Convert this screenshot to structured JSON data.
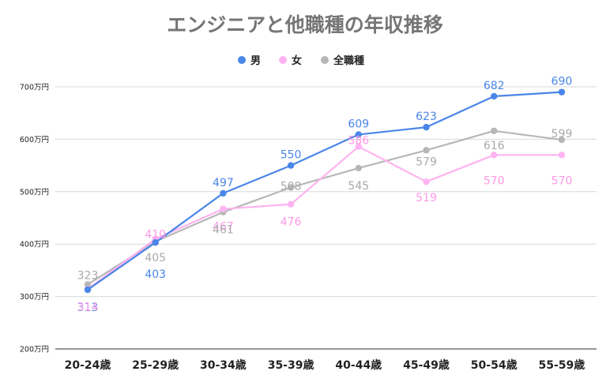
{
  "chart_data": {
    "type": "line",
    "title": "エンジニアと他職種の年収推移",
    "xlabel": "",
    "ylabel": "",
    "categories": [
      "20-24歳",
      "25-29歳",
      "30-34歳",
      "35-39歳",
      "40-44歳",
      "45-49歳",
      "50-54歳",
      "55-59歳"
    ],
    "y_ticks": [
      "200万円",
      "300万円",
      "400万円",
      "500万円",
      "600万円",
      "700万円"
    ],
    "ylim": [
      200,
      700
    ],
    "grid": true,
    "legend_position": "top-center",
    "series": [
      {
        "name": "男",
        "color": "#4a86e8",
        "values": [
          313,
          403,
          497,
          550,
          609,
          623,
          682,
          690
        ]
      },
      {
        "name": "女",
        "color": "#ffb3f0",
        "values": [
          314,
          410,
          467,
          476,
          586,
          519,
          570,
          570
        ]
      },
      {
        "name": "全職種",
        "color": "#b7b7b7",
        "values": [
          323,
          405,
          461,
          508,
          545,
          579,
          616,
          599
        ]
      }
    ]
  }
}
